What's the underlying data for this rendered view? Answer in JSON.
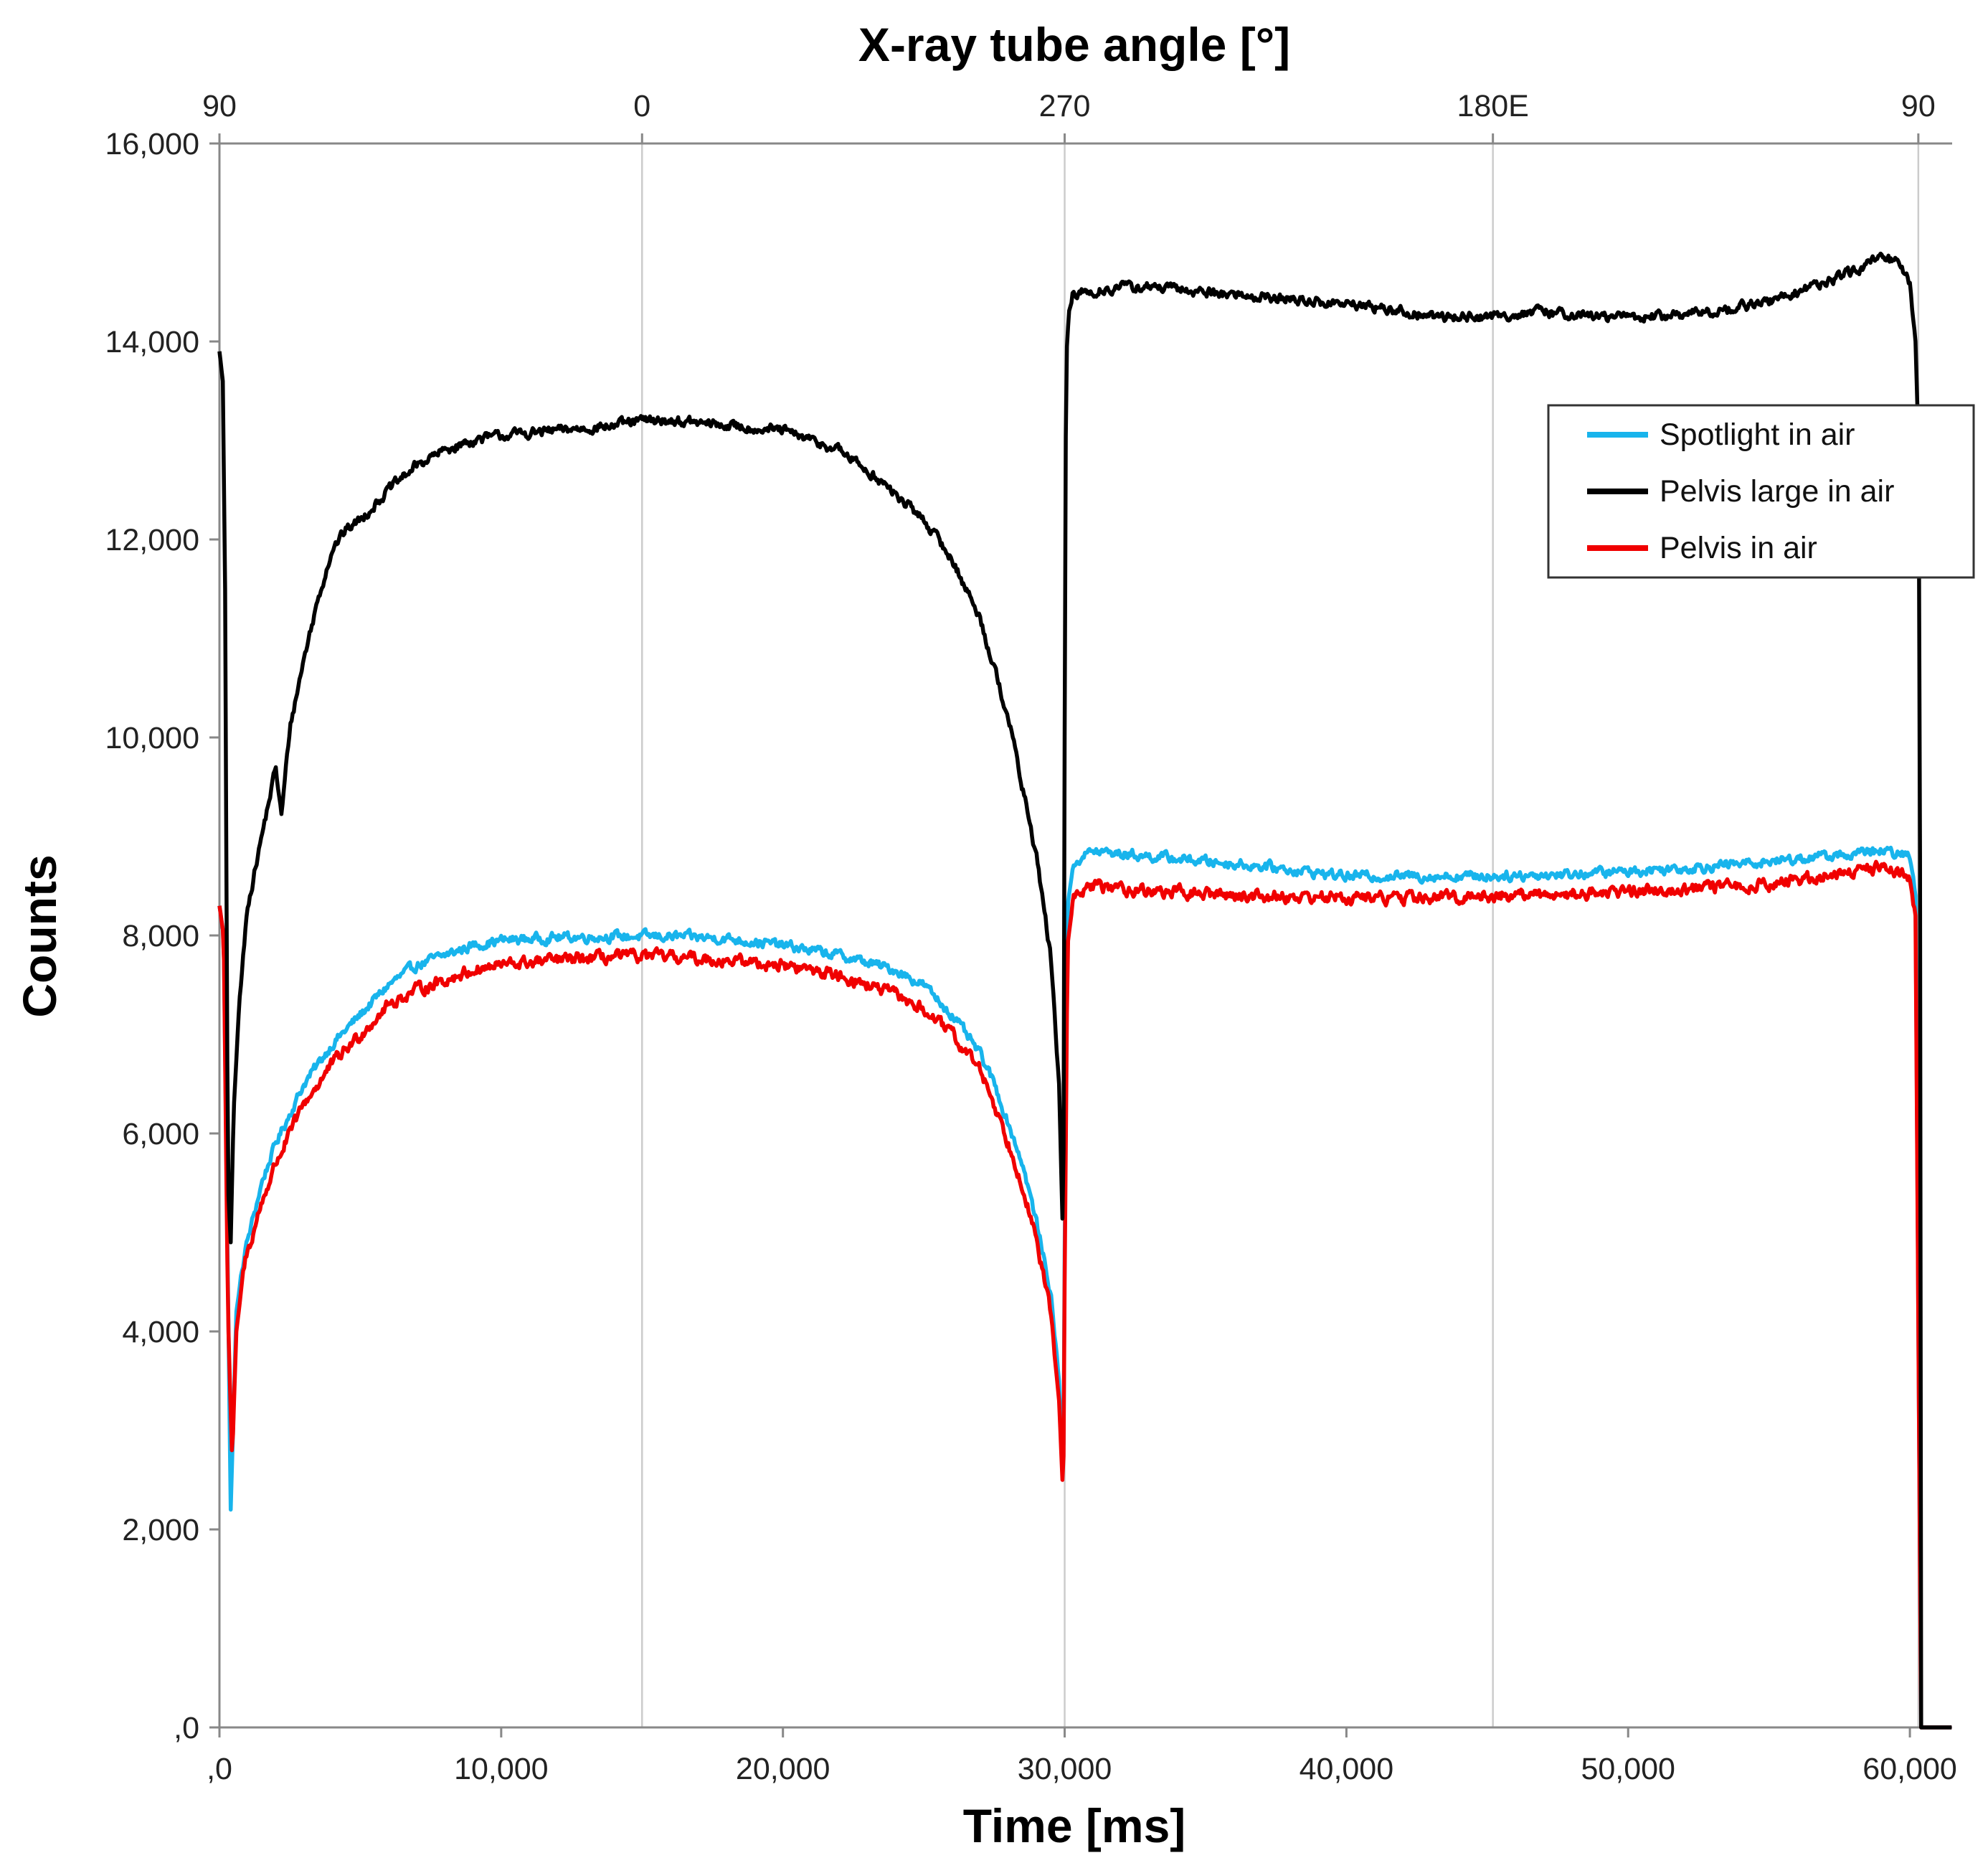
{
  "chart_data": {
    "type": "line",
    "title": "",
    "xlabel": "Time [ms]",
    "ylabel": "Counts",
    "top_axis_label": "X-ray tube angle [°]",
    "xlim": [
      0,
      61500
    ],
    "ylim": [
      0,
      16000
    ],
    "x_ticks": [
      0,
      10000,
      20000,
      30000,
      40000,
      50000,
      60000
    ],
    "x_tick_labels": [
      ",0",
      "10,000",
      "20,000",
      "30,000",
      "40,000",
      "50,000",
      "60,000"
    ],
    "y_ticks": [
      0,
      2000,
      4000,
      6000,
      8000,
      10000,
      12000,
      14000,
      16000
    ],
    "y_tick_labels": [
      ",0",
      "2,000",
      "4,000",
      "6,000",
      "8,000",
      "10,000",
      "12,000",
      "14,000",
      "16,000"
    ],
    "top_ticks": [
      0,
      15000,
      30000,
      45200,
      60300
    ],
    "top_tick_labels": [
      "90",
      "0",
      "270",
      "180E",
      "90"
    ],
    "vertical_gridlines": [
      15000,
      30000,
      45200,
      60300
    ],
    "legend_position": "right",
    "colors": {
      "spotlight": "#18b4ec",
      "pelvis_large": "#000000",
      "pelvis": "#f00000",
      "grid": "#cccccc",
      "axis": "#888888"
    },
    "series": [
      {
        "name": "Spotlight in air",
        "color": "#18b4ec",
        "x": [
          0,
          150,
          300,
          400,
          600,
          900,
          1500,
          2000,
          3000,
          4000,
          5000,
          6000,
          7000,
          8000,
          9000,
          10000,
          12000,
          14000,
          15000,
          16000,
          18000,
          20000,
          22000,
          24000,
          25000,
          26000,
          27000,
          27500,
          28000,
          28500,
          29000,
          29500,
          29800,
          29950,
          30000,
          30100,
          30300,
          30600,
          31000,
          33000,
          35000,
          37000,
          40000,
          43000,
          45000,
          48000,
          50000,
          53000,
          55000,
          57000,
          58000,
          59000,
          60000,
          60200,
          60350,
          60400,
          60500,
          61000,
          61500
        ],
        "y": [
          8300,
          8000,
          4500,
          2200,
          4200,
          4800,
          5500,
          5900,
          6500,
          6900,
          7200,
          7500,
          7700,
          7800,
          7900,
          7950,
          7980,
          7990,
          7990,
          7990,
          7970,
          7900,
          7800,
          7650,
          7500,
          7200,
          6800,
          6500,
          6100,
          5700,
          5100,
          4400,
          3500,
          2400,
          4800,
          8300,
          8700,
          8800,
          8850,
          8800,
          8750,
          8700,
          8600,
          8600,
          8600,
          8620,
          8650,
          8700,
          8750,
          8800,
          8820,
          8850,
          8800,
          8400,
          2000,
          0,
          0,
          0,
          0
        ]
      },
      {
        "name": "Pelvis large in air",
        "color": "#000000",
        "x": [
          0,
          120,
          200,
          300,
          400,
          500,
          700,
          1000,
          1500,
          2000,
          2200,
          2500,
          3000,
          3500,
          4000,
          4500,
          5000,
          6000,
          7000,
          8000,
          9000,
          10000,
          12000,
          14000,
          15000,
          16000,
          18000,
          20000,
          22000,
          23000,
          24000,
          25000,
          26000,
          27000,
          27500,
          28000,
          28500,
          29000,
          29500,
          29800,
          29950,
          30000,
          30050,
          30150,
          30300,
          30600,
          31000,
          32000,
          33000,
          35000,
          37000,
          39000,
          41000,
          43000,
          45000,
          47000,
          49000,
          51000,
          53000,
          55000,
          57000,
          58000,
          59000,
          59500,
          60000,
          60200,
          60300,
          60350,
          60400,
          60500,
          61000,
          61500
        ],
        "y": [
          13900,
          13600,
          11500,
          5500,
          4900,
          6200,
          7300,
          8300,
          9000,
          9700,
          9200,
          10100,
          10800,
          11400,
          11900,
          12100,
          12200,
          12500,
          12750,
          12900,
          13000,
          13050,
          13100,
          13150,
          13200,
          13200,
          13150,
          13100,
          12900,
          12700,
          12450,
          12200,
          11800,
          11200,
          10700,
          10200,
          9500,
          8800,
          7800,
          6500,
          4800,
          10000,
          13800,
          14300,
          14450,
          14500,
          14500,
          14550,
          14550,
          14500,
          14450,
          14400,
          14350,
          14250,
          14250,
          14300,
          14250,
          14250,
          14300,
          14400,
          14600,
          14700,
          14850,
          14800,
          14600,
          14000,
          13000,
          11000,
          0,
          0,
          0,
          0
        ]
      },
      {
        "name": "Pelvis in air",
        "color": "#f00000",
        "x": [
          0,
          150,
          300,
          450,
          600,
          900,
          1500,
          2000,
          3000,
          4000,
          5000,
          6000,
          7000,
          8000,
          9000,
          10000,
          12000,
          14000,
          15000,
          16000,
          18000,
          20000,
          22000,
          24000,
          25000,
          26000,
          27000,
          27500,
          28000,
          28500,
          29000,
          29500,
          29800,
          29950,
          30000,
          30100,
          30300,
          30600,
          31000,
          33000,
          35000,
          37000,
          40000,
          43000,
          45000,
          48000,
          50000,
          53000,
          55000,
          57000,
          58000,
          59000,
          60000,
          60200,
          60350,
          60400,
          60500,
          61000,
          61500
        ],
        "y": [
          8300,
          8000,
          4200,
          2700,
          4000,
          4700,
          5300,
          5700,
          6300,
          6700,
          7000,
          7300,
          7450,
          7550,
          7650,
          7700,
          7750,
          7780,
          7790,
          7780,
          7750,
          7700,
          7600,
          7400,
          7250,
          7000,
          6650,
          6300,
          5900,
          5500,
          4900,
          4200,
          3300,
          2300,
          4500,
          7900,
          8350,
          8450,
          8500,
          8450,
          8420,
          8400,
          8380,
          8380,
          8400,
          8420,
          8450,
          8480,
          8520,
          8600,
          8650,
          8700,
          8600,
          8200,
          2000,
          0,
          0,
          0,
          0
        ]
      }
    ]
  }
}
